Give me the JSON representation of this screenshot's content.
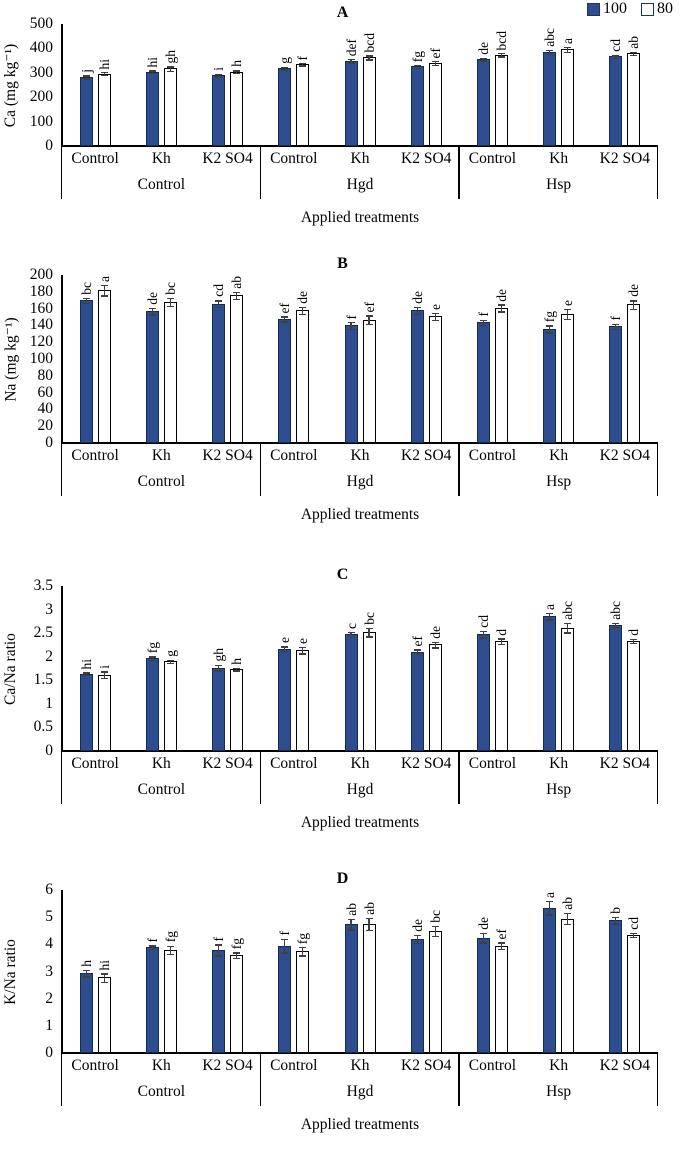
{
  "legend": {
    "items": [
      {
        "label": "100",
        "color": "#2e4d8e"
      },
      {
        "label": "80",
        "color": "#ffffff"
      }
    ]
  },
  "chart_data": [
    {
      "type": "bar",
      "panel": "A",
      "ylabel": "Ca (mg kg⁻¹)",
      "xlabel": "Applied treatments",
      "ylim": [
        0,
        500
      ],
      "yticks": [
        0,
        100,
        200,
        300,
        400,
        500
      ],
      "grid": false,
      "legend_position": "top-right",
      "groups": [
        "Control",
        "Hgd",
        "Hsp"
      ],
      "subgroups": [
        "Control",
        "Kh",
        "K2 SO4"
      ],
      "series": [
        {
          "name": "100",
          "color": "#2e4d8e",
          "values": [
            283,
            305,
            291,
            319,
            350,
            327,
            357,
            386,
            367
          ],
          "errors": [
            6,
            6,
            5,
            5,
            7,
            6,
            5,
            8,
            5
          ],
          "letters": [
            "j",
            "hi",
            "i",
            "g",
            "def",
            "fg",
            "de",
            "abc",
            "cd"
          ]
        },
        {
          "name": "80",
          "color": "#ffffff",
          "values": [
            297,
            318,
            305,
            335,
            363,
            340,
            374,
            396,
            380
          ],
          "errors": [
            6,
            9,
            6,
            5,
            8,
            8,
            7,
            10,
            6
          ],
          "letters": [
            "hi",
            "gh",
            "h",
            "f",
            "bcd",
            "ef",
            "bcd",
            "a",
            "ab"
          ]
        }
      ]
    },
    {
      "type": "bar",
      "panel": "B",
      "ylabel": "Na (mg kg⁻¹)",
      "xlabel": "Applied treatments",
      "ylim": [
        0,
        200
      ],
      "yticks": [
        0,
        20,
        40,
        60,
        80,
        100,
        120,
        140,
        160,
        180,
        200
      ],
      "grid": false,
      "groups": [
        "Control",
        "Hgd",
        "Hsp"
      ],
      "subgroups": [
        "Control",
        "Kh",
        "K2 SO4"
      ],
      "series": [
        {
          "name": "100",
          "color": "#2e4d8e",
          "values": [
            170,
            157,
            166,
            148,
            140,
            158,
            144,
            136,
            139
          ],
          "errors": [
            3,
            4,
            4,
            3,
            4,
            4,
            3,
            4,
            3
          ],
          "letters": [
            "bc",
            "de",
            "cd",
            "ef",
            "f",
            "de",
            "f",
            "fg",
            "f"
          ]
        },
        {
          "name": "80",
          "color": "#ffffff",
          "values": [
            182,
            168,
            176,
            158,
            147,
            151,
            161,
            154,
            165
          ],
          "errors": [
            6,
            5,
            4,
            4,
            5,
            4,
            4,
            6,
            5
          ],
          "letters": [
            "a",
            "bc",
            "ab",
            "de",
            "ef",
            "e",
            "de",
            "e",
            "de"
          ]
        }
      ]
    },
    {
      "type": "bar",
      "panel": "C",
      "ylabel": "Ca/Na ratio",
      "xlabel": "Applied treatments",
      "ylim": [
        0,
        3.5
      ],
      "yticks": [
        0,
        0.5,
        1,
        1.5,
        2,
        2.5,
        3,
        3.5
      ],
      "grid": false,
      "groups": [
        "Control",
        "Hgd",
        "Hsp"
      ],
      "subgroups": [
        "Control",
        "Kh",
        "K2 SO4"
      ],
      "series": [
        {
          "name": "100",
          "color": "#2e4d8e",
          "values": [
            1.64,
            1.97,
            1.77,
            2.17,
            2.49,
            2.11,
            2.48,
            2.86,
            2.67
          ],
          "errors": [
            0.03,
            0.04,
            0.06,
            0.05,
            0.04,
            0.05,
            0.07,
            0.07,
            0.05
          ],
          "letters": [
            "hi",
            "fg",
            "gh",
            "e",
            "c",
            "ef",
            "cd",
            "a",
            "abc"
          ]
        },
        {
          "name": "80",
          "color": "#ffffff",
          "values": [
            1.62,
            1.9,
            1.74,
            2.14,
            2.52,
            2.26,
            2.33,
            2.62,
            2.34
          ],
          "errors": [
            0.07,
            0.03,
            0.03,
            0.07,
            0.09,
            0.06,
            0.06,
            0.1,
            0.04
          ],
          "letters": [
            "i",
            "g",
            "h",
            "e",
            "bc",
            "de",
            "d",
            "abc",
            "d"
          ]
        }
      ]
    },
    {
      "type": "bar",
      "panel": "D",
      "ylabel": "K/Na ratio",
      "xlabel": "Applied treatments",
      "ylim": [
        0,
        6
      ],
      "yticks": [
        0,
        1,
        2,
        3,
        4,
        5,
        6
      ],
      "grid": false,
      "groups": [
        "Control",
        "Hgd",
        "Hsp"
      ],
      "subgroups": [
        "Control",
        "Kh",
        "K2 SO4"
      ],
      "series": [
        {
          "name": "100",
          "color": "#2e4d8e",
          "values": [
            2.95,
            3.9,
            3.8,
            3.95,
            4.75,
            4.2,
            4.25,
            5.35,
            4.9
          ],
          "errors": [
            0.12,
            0.06,
            0.2,
            0.25,
            0.2,
            0.15,
            0.18,
            0.25,
            0.12
          ],
          "letters": [
            "h",
            "f",
            "f",
            "f",
            "ab",
            "de",
            "de",
            "a",
            "b"
          ]
        },
        {
          "name": "80",
          "color": "#ffffff",
          "values": [
            2.78,
            3.8,
            3.6,
            3.75,
            4.75,
            4.5,
            3.95,
            4.95,
            4.35
          ],
          "errors": [
            0.15,
            0.15,
            0.1,
            0.15,
            0.22,
            0.18,
            0.12,
            0.2,
            0.08
          ],
          "letters": [
            "hi",
            "fg",
            "fg",
            "fg",
            "ab",
            "bc",
            "ef",
            "ab",
            "cd"
          ]
        }
      ]
    }
  ]
}
